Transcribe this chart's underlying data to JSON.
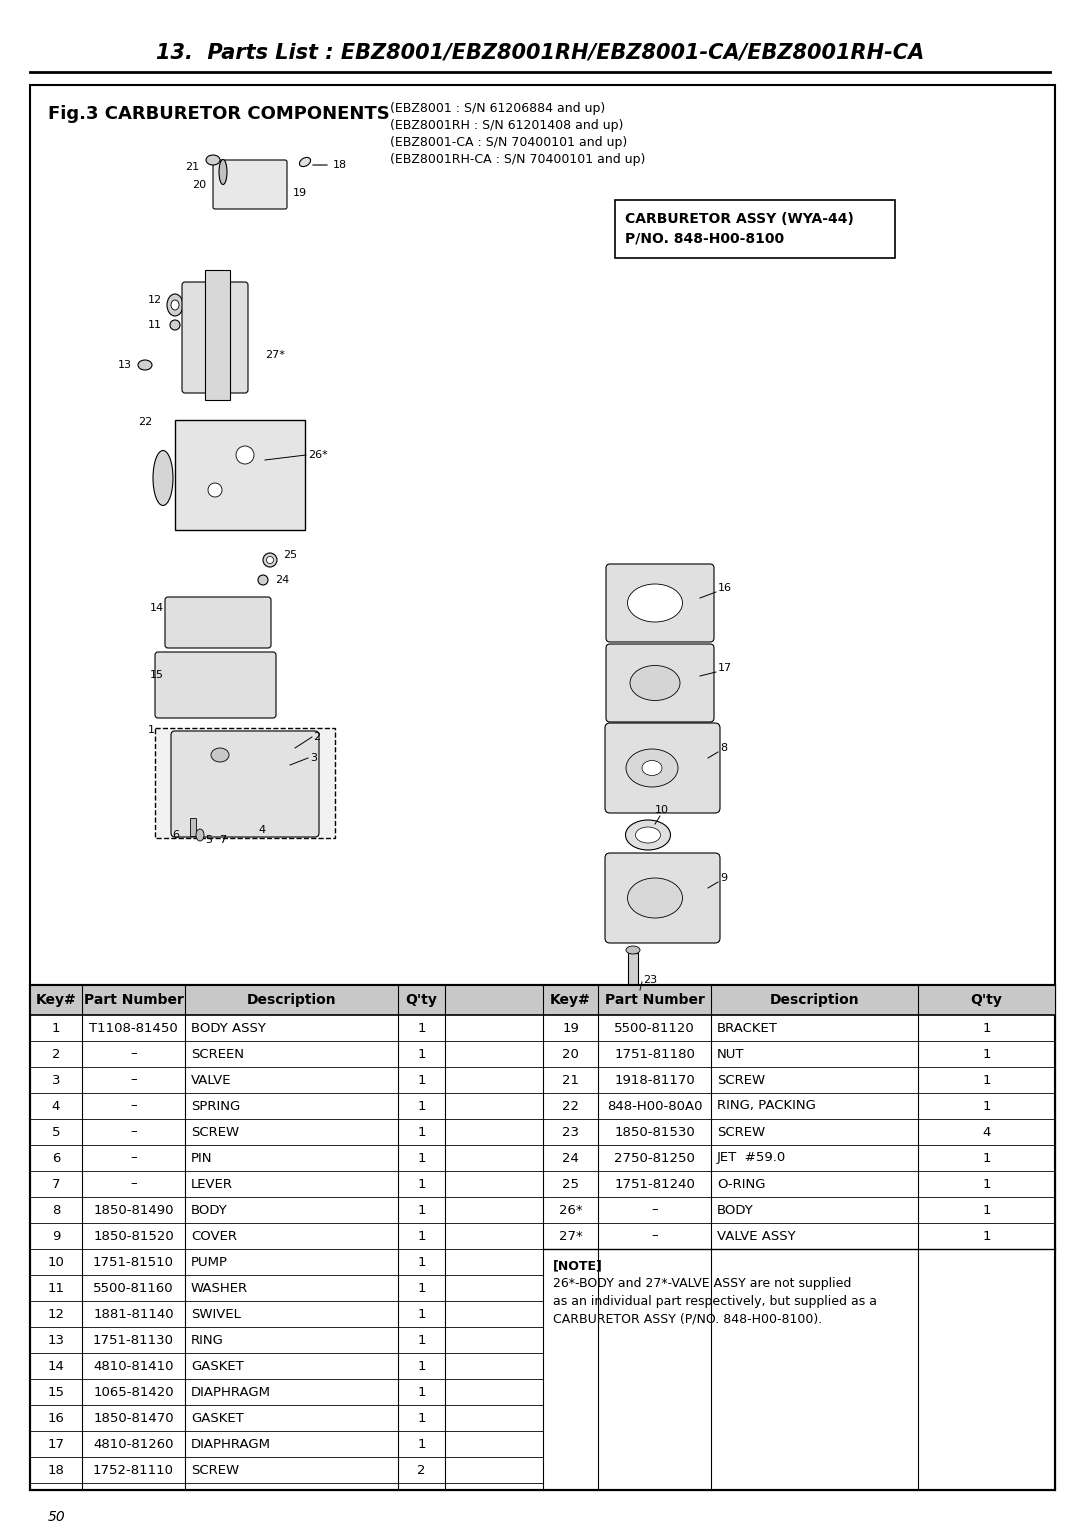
{
  "page_title": "13.  Parts List : EBZ8001/EBZ8001RH/EBZ8001-CA/EBZ8001RH-CA",
  "fig_title": "Fig.3 CARBURETOR COMPONENTS",
  "fig_subtitle_lines": [
    "(EBZ8001 : S/N 61206884 and up)",
    "(EBZ8001RH : S/N 61201408 and up)",
    "(EBZ8001-CA : S/N 70400101 and up)",
    "(EBZ8001RH-CA : S/N 70400101 and up)"
  ],
  "carb_box_line1": "CARBURETOR ASSY (WYA-44)",
  "carb_box_line2": "P/NO. 848-H00-8100",
  "table_headers": [
    "Key#",
    "Part Number",
    "Description",
    "Q'ty"
  ],
  "left_rows": [
    [
      "1",
      "T1108-81450",
      "BODY ASSY",
      "1"
    ],
    [
      "2",
      "–",
      "SCREEN",
      "1"
    ],
    [
      "3",
      "–",
      "VALVE",
      "1"
    ],
    [
      "4",
      "–",
      "SPRING",
      "1"
    ],
    [
      "5",
      "–",
      "SCREW",
      "1"
    ],
    [
      "6",
      "–",
      "PIN",
      "1"
    ],
    [
      "7",
      "–",
      "LEVER",
      "1"
    ],
    [
      "8",
      "1850-81490",
      "BODY",
      "1"
    ],
    [
      "9",
      "1850-81520",
      "COVER",
      "1"
    ],
    [
      "10",
      "1751-81510",
      "PUMP",
      "1"
    ],
    [
      "11",
      "5500-81160",
      "WASHER",
      "1"
    ],
    [
      "12",
      "1881-81140",
      "SWIVEL",
      "1"
    ],
    [
      "13",
      "1751-81130",
      "RING",
      "1"
    ],
    [
      "14",
      "4810-81410",
      "GASKET",
      "1"
    ],
    [
      "15",
      "1065-81420",
      "DIAPHRAGM",
      "1"
    ],
    [
      "16",
      "1850-81470",
      "GASKET",
      "1"
    ],
    [
      "17",
      "4810-81260",
      "DIAPHRAGM",
      "1"
    ],
    [
      "18",
      "1752-81110",
      "SCREW",
      "2"
    ]
  ],
  "right_rows": [
    [
      "19",
      "5500-81120",
      "BRACKET",
      "1"
    ],
    [
      "20",
      "1751-81180",
      "NUT",
      "1"
    ],
    [
      "21",
      "1918-81170",
      "SCREW",
      "1"
    ],
    [
      "22",
      "848-H00-80A0",
      "RING, PACKING",
      "1"
    ],
    [
      "23",
      "1850-81530",
      "SCREW",
      "4"
    ],
    [
      "24",
      "2750-81250",
      "JET  #59.0",
      "1"
    ],
    [
      "25",
      "1751-81240",
      "O-RING",
      "1"
    ],
    [
      "26*",
      "–",
      "BODY",
      "1"
    ],
    [
      "27*",
      "–",
      "VALVE ASSY",
      "1"
    ]
  ],
  "note_lines": [
    "[NOTE]",
    "26*-BODY and 27*-VALVE ASSY are not supplied",
    "as an individual part respectively, but supplied as a",
    "CARBURETOR ASSY (P/NO. 848-H00-8100)."
  ],
  "page_number": "50"
}
